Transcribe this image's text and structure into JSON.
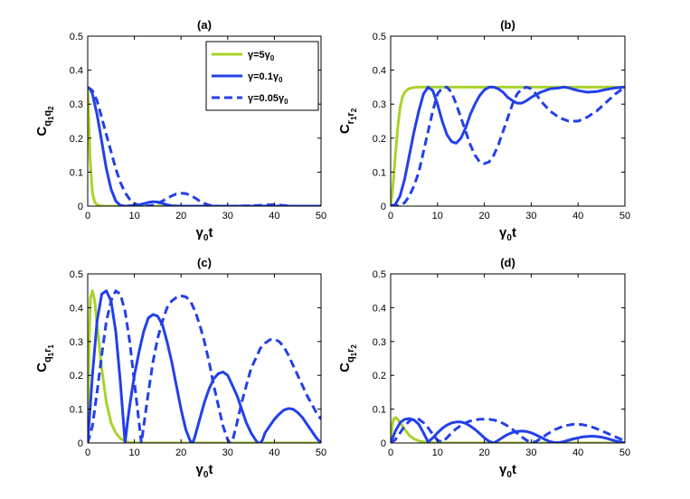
{
  "colors": {
    "green": "#a8d32a",
    "blue": "#2340e8",
    "axis": "#000000"
  },
  "legend": {
    "entries": [
      {
        "base": "γ=5γ",
        "sub": "0",
        "style": "solid",
        "color": "green"
      },
      {
        "base": "γ=0.1γ",
        "sub": "0",
        "style": "solid",
        "color": "blue"
      },
      {
        "base": "γ=0.05γ",
        "sub": "0",
        "style": "dashed",
        "color": "blue"
      }
    ]
  },
  "chart_data": [
    {
      "type": "line",
      "title": "(a)",
      "xlabel": {
        "base": "γ",
        "sub": "0",
        "tail": "t"
      },
      "ylabel": {
        "base": "C",
        "sub": "q",
        "sub2": "1",
        "mid": "q",
        "sub3": "2",
        "text": "C q1 q2"
      },
      "xlim": [
        0,
        50
      ],
      "ylim": [
        0,
        0.5
      ],
      "xticks": [
        "0",
        "10",
        "20",
        "30",
        "40",
        "50"
      ],
      "yticks": [
        "0",
        "0.1",
        "0.2",
        "0.3",
        "0.4",
        "0.5"
      ],
      "series": [
        {
          "name": "γ=5γ0",
          "style": "solid",
          "color": "green",
          "x": [
            0,
            0.5,
            1,
            1.5,
            2,
            3,
            4,
            6,
            10,
            50
          ],
          "y": [
            0.35,
            0.14,
            0.04,
            0.012,
            0.004,
            0,
            0,
            0,
            0,
            0
          ]
        },
        {
          "name": "γ=0.1γ0",
          "style": "solid",
          "color": "blue",
          "x": [
            0,
            0.5,
            1,
            2,
            3,
            4,
            5,
            6,
            7,
            8,
            9,
            10,
            11,
            12,
            13,
            14,
            15,
            16,
            17,
            18,
            20,
            30,
            40,
            50
          ],
          "y": [
            0.35,
            0.345,
            0.33,
            0.27,
            0.19,
            0.11,
            0.05,
            0.015,
            0.002,
            0,
            0.001,
            0.002,
            0.004,
            0.007,
            0.011,
            0.013,
            0.012,
            0.008,
            0.004,
            0.001,
            0,
            0,
            0,
            0
          ]
        },
        {
          "name": "γ=0.05γ0",
          "style": "dashed",
          "color": "blue",
          "x": [
            0,
            1,
            2,
            3,
            4,
            5,
            6,
            7,
            8,
            9,
            10,
            11,
            12,
            13,
            14,
            15,
            16,
            17,
            18,
            19,
            20,
            21,
            22,
            23,
            24,
            25,
            26,
            27,
            28,
            30,
            35,
            38,
            39,
            40,
            41,
            42,
            44,
            50
          ],
          "y": [
            0.35,
            0.34,
            0.31,
            0.26,
            0.21,
            0.16,
            0.11,
            0.07,
            0.04,
            0.02,
            0.008,
            0.002,
            0,
            0.001,
            0.003,
            0.008,
            0.015,
            0.023,
            0.03,
            0.036,
            0.038,
            0.037,
            0.032,
            0.024,
            0.015,
            0.008,
            0.003,
            0.001,
            0,
            0,
            0.001,
            0.003,
            0.004,
            0.004,
            0.003,
            0.002,
            0,
            0
          ]
        }
      ]
    },
    {
      "type": "line",
      "title": "(b)",
      "xlabel": {
        "base": "γ",
        "sub": "0",
        "tail": "t"
      },
      "ylabel": {
        "base": "C",
        "sub": "r",
        "sub2": "1",
        "mid": "r",
        "sub3": "2",
        "text": "C r1 r2"
      },
      "xlim": [
        0,
        50
      ],
      "ylim": [
        0,
        0.5
      ],
      "xticks": [
        "0",
        "10",
        "20",
        "30",
        "40",
        "50"
      ],
      "yticks": [
        "0",
        "0.1",
        "0.2",
        "0.3",
        "0.4",
        "0.5"
      ],
      "series": [
        {
          "name": "γ=5γ0",
          "style": "solid",
          "color": "green",
          "x": [
            0,
            0.5,
            1,
            1.5,
            2,
            2.5,
            3,
            3.5,
            4,
            5,
            6,
            50
          ],
          "y": [
            0,
            0.06,
            0.15,
            0.23,
            0.29,
            0.32,
            0.335,
            0.342,
            0.346,
            0.349,
            0.35,
            0.35
          ]
        },
        {
          "name": "γ=0.1γ0",
          "style": "solid",
          "color": "blue",
          "x": [
            0,
            1,
            2,
            3,
            4,
            5,
            6,
            7,
            8,
            9,
            10,
            11,
            12,
            13,
            14,
            15,
            16,
            17,
            18,
            19,
            20,
            21,
            22,
            23,
            24,
            25,
            26,
            27,
            28,
            29,
            30,
            32,
            34,
            36,
            37,
            38,
            40,
            42,
            44,
            46,
            48,
            50
          ],
          "y": [
            0,
            0.005,
            0.03,
            0.08,
            0.15,
            0.22,
            0.28,
            0.33,
            0.35,
            0.34,
            0.3,
            0.25,
            0.21,
            0.19,
            0.185,
            0.2,
            0.23,
            0.27,
            0.3,
            0.325,
            0.342,
            0.35,
            0.35,
            0.345,
            0.335,
            0.32,
            0.31,
            0.303,
            0.303,
            0.31,
            0.32,
            0.335,
            0.345,
            0.348,
            0.35,
            0.348,
            0.34,
            0.335,
            0.337,
            0.343,
            0.348,
            0.35
          ]
        },
        {
          "name": "γ=0.05γ0",
          "style": "dashed",
          "color": "blue",
          "x": [
            0,
            1,
            2,
            3,
            4,
            5,
            6,
            7,
            8,
            9,
            10,
            11,
            12,
            13,
            14,
            15,
            16,
            17,
            18,
            19,
            20,
            21,
            22,
            23,
            24,
            25,
            26,
            27,
            28,
            29,
            30,
            31,
            32,
            34,
            36,
            38,
            40,
            42,
            44,
            46,
            48,
            50
          ],
          "y": [
            0,
            0,
            0.002,
            0.01,
            0.03,
            0.06,
            0.1,
            0.16,
            0.22,
            0.28,
            0.33,
            0.348,
            0.35,
            0.335,
            0.3,
            0.26,
            0.22,
            0.18,
            0.15,
            0.13,
            0.125,
            0.13,
            0.15,
            0.18,
            0.22,
            0.26,
            0.3,
            0.33,
            0.345,
            0.35,
            0.345,
            0.33,
            0.31,
            0.28,
            0.26,
            0.25,
            0.25,
            0.262,
            0.28,
            0.305,
            0.33,
            0.35
          ]
        }
      ]
    },
    {
      "type": "line",
      "title": "(c)",
      "xlabel": {
        "base": "γ",
        "sub": "0",
        "tail": "t"
      },
      "ylabel": {
        "base": "C",
        "sub": "q",
        "sub2": "1",
        "mid": "r",
        "sub3": "1",
        "text": "C q1 r1"
      },
      "xlim": [
        0,
        50
      ],
      "ylim": [
        0,
        0.5
      ],
      "xticks": [
        "0",
        "10",
        "20",
        "30",
        "40",
        "50"
      ],
      "yticks": [
        "0",
        "0.1",
        "0.2",
        "0.3",
        "0.4",
        "0.5"
      ],
      "series": [
        {
          "name": "γ=5γ0",
          "style": "solid",
          "color": "green",
          "x": [
            0,
            0.3,
            0.6,
            1,
            1.5,
            2,
            3,
            4,
            5,
            6,
            7,
            8,
            9,
            10,
            12,
            50
          ],
          "y": [
            0,
            0.3,
            0.43,
            0.45,
            0.42,
            0.35,
            0.22,
            0.12,
            0.06,
            0.03,
            0.013,
            0.005,
            0.002,
            0,
            0,
            0
          ]
        },
        {
          "name": "γ=0.1γ0",
          "style": "solid",
          "color": "blue",
          "x": [
            0,
            1,
            2,
            3,
            4,
            5,
            6,
            7,
            7.5,
            8,
            8.5,
            9,
            10,
            11,
            12,
            13,
            14,
            15,
            16,
            17,
            18,
            19,
            20,
            21,
            22,
            22.5,
            23,
            24,
            25,
            26,
            27,
            28,
            29,
            30,
            31,
            32,
            33,
            34,
            35,
            36,
            36.5,
            37,
            37.5,
            38,
            39,
            40,
            41,
            42,
            43,
            44,
            45,
            46,
            47,
            48,
            49,
            50
          ],
          "y": [
            0,
            0.2,
            0.36,
            0.44,
            0.45,
            0.42,
            0.33,
            0.18,
            0.09,
            0,
            0.06,
            0.11,
            0.2,
            0.27,
            0.33,
            0.37,
            0.38,
            0.375,
            0.35,
            0.3,
            0.24,
            0.17,
            0.1,
            0.04,
            0.005,
            0,
            0.02,
            0.07,
            0.12,
            0.16,
            0.19,
            0.205,
            0.21,
            0.2,
            0.17,
            0.14,
            0.1,
            0.06,
            0.03,
            0.008,
            0,
            0,
            0.01,
            0.03,
            0.05,
            0.07,
            0.085,
            0.097,
            0.102,
            0.1,
            0.09,
            0.075,
            0.055,
            0.035,
            0.015,
            0
          ]
        },
        {
          "name": "γ=0.05γ0",
          "style": "dashed",
          "color": "blue",
          "x": [
            0,
            1,
            2,
            3,
            4,
            5,
            6,
            7,
            8,
            9,
            10,
            11,
            11.5,
            12,
            13,
            14,
            15,
            16,
            17,
            18,
            19,
            20,
            21,
            22,
            23,
            24,
            25,
            26,
            27,
            28,
            29,
            30,
            30.5,
            31,
            32,
            33,
            34,
            35,
            36,
            37,
            38,
            39,
            40,
            41,
            42,
            43,
            44,
            45,
            46,
            47,
            48,
            49,
            50
          ],
          "y": [
            0,
            0.05,
            0.15,
            0.26,
            0.36,
            0.42,
            0.45,
            0.44,
            0.39,
            0.3,
            0.18,
            0.06,
            0,
            0.05,
            0.15,
            0.24,
            0.31,
            0.36,
            0.4,
            0.42,
            0.43,
            0.435,
            0.432,
            0.42,
            0.39,
            0.35,
            0.3,
            0.24,
            0.17,
            0.11,
            0.05,
            0.01,
            0,
            0.005,
            0.06,
            0.12,
            0.17,
            0.22,
            0.25,
            0.28,
            0.295,
            0.305,
            0.307,
            0.3,
            0.285,
            0.26,
            0.23,
            0.2,
            0.17,
            0.14,
            0.115,
            0.09,
            0.07
          ]
        }
      ]
    },
    {
      "type": "line",
      "title": "(d)",
      "xlabel": {
        "base": "γ",
        "sub": "0",
        "tail": "t"
      },
      "ylabel": {
        "base": "C",
        "sub": "q",
        "sub2": "1",
        "mid": "r",
        "sub3": "2",
        "text": "C q1 r2"
      },
      "xlim": [
        0,
        50
      ],
      "ylim": [
        0,
        0.5
      ],
      "xticks": [
        "0",
        "10",
        "20",
        "30",
        "40",
        "50"
      ],
      "yticks": [
        "0",
        "0.1",
        "0.2",
        "0.3",
        "0.4",
        "0.5"
      ],
      "series": [
        {
          "name": "γ=5γ0",
          "style": "solid",
          "color": "green",
          "x": [
            0,
            0.3,
            0.6,
            1,
            1.5,
            2,
            3,
            4,
            5,
            6,
            7,
            8,
            10,
            50
          ],
          "y": [
            0,
            0.05,
            0.07,
            0.075,
            0.07,
            0.06,
            0.04,
            0.022,
            0.012,
            0.006,
            0.003,
            0.001,
            0,
            0
          ]
        },
        {
          "name": "γ=0.1γ0",
          "style": "solid",
          "color": "blue",
          "x": [
            0,
            1,
            2,
            3,
            4,
            5,
            6,
            7,
            8,
            9,
            10,
            11,
            12,
            13,
            14,
            15,
            16,
            17,
            18,
            19,
            20,
            21,
            22,
            23,
            24,
            25,
            26,
            27,
            28,
            29,
            30,
            31,
            32,
            33,
            34,
            35,
            36,
            37,
            38,
            39,
            40,
            41,
            42,
            43,
            44,
            45,
            46,
            47,
            48,
            49,
            50
          ],
          "y": [
            0,
            0.035,
            0.06,
            0.07,
            0.072,
            0.068,
            0.055,
            0.03,
            0.003,
            0.015,
            0.03,
            0.043,
            0.053,
            0.059,
            0.062,
            0.062,
            0.058,
            0.05,
            0.04,
            0.028,
            0.015,
            0.005,
            0,
            0.008,
            0.017,
            0.025,
            0.031,
            0.034,
            0.035,
            0.034,
            0.03,
            0.024,
            0.017,
            0.01,
            0.004,
            0.001,
            0.001,
            0.004,
            0.008,
            0.012,
            0.015,
            0.018,
            0.019,
            0.02,
            0.019,
            0.017,
            0.014,
            0.01,
            0.006,
            0.003,
            0
          ]
        },
        {
          "name": "γ=0.05γ0",
          "style": "dashed",
          "color": "blue",
          "x": [
            0,
            1,
            2,
            3,
            4,
            5,
            6,
            7,
            8,
            9,
            10,
            11,
            12,
            13,
            14,
            15,
            16,
            17,
            18,
            19,
            20,
            21,
            22,
            23,
            24,
            25,
            26,
            27,
            28,
            29,
            30,
            31,
            32,
            33,
            34,
            35,
            36,
            37,
            38,
            39,
            40,
            41,
            42,
            43,
            44,
            45,
            46,
            47,
            48,
            49,
            50
          ],
          "y": [
            0,
            0.01,
            0.03,
            0.05,
            0.065,
            0.072,
            0.07,
            0.06,
            0.045,
            0.025,
            0.008,
            0.003,
            0.015,
            0.03,
            0.042,
            0.052,
            0.06,
            0.065,
            0.068,
            0.07,
            0.07,
            0.07,
            0.068,
            0.064,
            0.058,
            0.05,
            0.04,
            0.029,
            0.018,
            0.008,
            0.001,
            0.004,
            0.013,
            0.022,
            0.031,
            0.039,
            0.045,
            0.05,
            0.053,
            0.055,
            0.055,
            0.054,
            0.051,
            0.047,
            0.042,
            0.036,
            0.03,
            0.024,
            0.018,
            0.012,
            0.006
          ]
        }
      ]
    }
  ]
}
